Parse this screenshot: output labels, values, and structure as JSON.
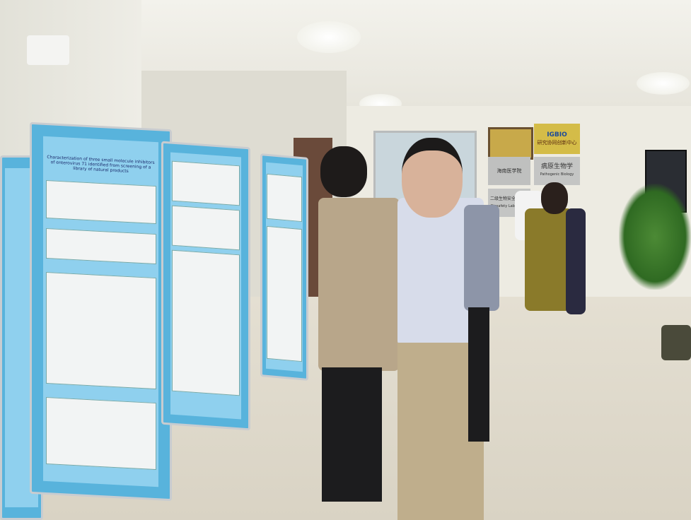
{
  "posters": [
    {
      "title": "Characterization of three small molecule inhibitors of enterovirus 71 identified from screening of a library of natural products"
    },
    {
      "title": ""
    },
    {
      "title": ""
    }
  ],
  "plaques": {
    "top_right_logo": "IGBIO",
    "top_right_text": "研究协同创新中心",
    "school": "海南医学院",
    "pathogen": "病原生物学",
    "pathogen_en": "Pathogenic Biology",
    "lab": "二级生物安全实验室",
    "lab_en": "Biosafety Laboratory"
  },
  "colors": {
    "poster": "#58b3dc",
    "wall": "#edebe2",
    "floor": "#d9d3c4"
  }
}
